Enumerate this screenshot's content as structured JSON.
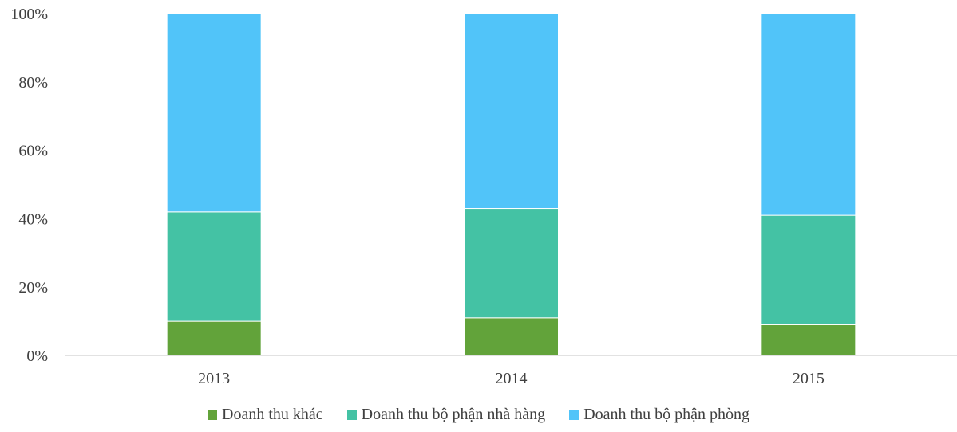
{
  "chart_data": {
    "type": "bar",
    "stacked": true,
    "categories": [
      "2013",
      "2014",
      "2015"
    ],
    "series": [
      {
        "name": "Doanh thu khác",
        "color": "#62A33A",
        "values": [
          10,
          11,
          9
        ]
      },
      {
        "name": "Doanh thu bộ phận nhà hàng",
        "color": "#44C2A4",
        "values": [
          32,
          32,
          32
        ]
      },
      {
        "name": "Doanh thu bộ phận phòng",
        "color": "#51C4F9",
        "values": [
          58,
          57,
          59
        ]
      }
    ],
    "y_ticks": [
      "0%",
      "20%",
      "40%",
      "60%",
      "80%",
      "100%"
    ],
    "ylim": [
      0,
      100
    ],
    "grid": false,
    "legend_position": "bottom"
  }
}
